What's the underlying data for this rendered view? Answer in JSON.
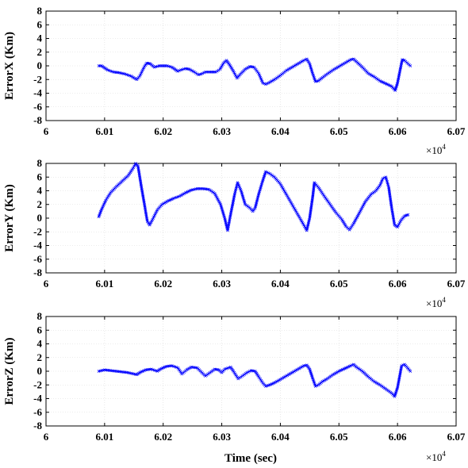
{
  "chart_data": [
    {
      "type": "scatter",
      "title": "",
      "xlabel": "",
      "ylabel": "ErrorX (Km)",
      "xlim": [
        60000,
        60700
      ],
      "ylim": [
        -8,
        8
      ],
      "xticks": [
        60000,
        60100,
        60200,
        60300,
        60400,
        60500,
        60600,
        60700
      ],
      "xtick_labels": [
        "6",
        "6.01",
        "6.02",
        "6.03",
        "6.04",
        "6.05",
        "6.06",
        "6.07"
      ],
      "yticks": [
        8,
        6,
        4,
        2,
        0,
        -2,
        -4,
        -6,
        -8
      ],
      "ytick_labels": [
        "8",
        "6",
        "4",
        "2",
        "0",
        "-2",
        "-4",
        "-6",
        "-8"
      ],
      "x_multiplier_base": "×10",
      "x_multiplier_exp": "4",
      "grid": true,
      "series": [
        {
          "color": "#0000ff",
          "marker": "x",
          "points": [
            [
              60090,
              0
            ],
            [
              60095,
              0
            ],
            [
              60100,
              -0.3
            ],
            [
              60105,
              -0.6
            ],
            [
              60115,
              -0.9
            ],
            [
              60125,
              -1.0
            ],
            [
              60135,
              -1.2
            ],
            [
              60145,
              -1.5
            ],
            [
              60155,
              -2.0
            ],
            [
              60160,
              -1.5
            ],
            [
              60168,
              -0.1
            ],
            [
              60172,
              0.4
            ],
            [
              60178,
              0.3
            ],
            [
              60185,
              -0.2
            ],
            [
              60193,
              0
            ],
            [
              60200,
              0
            ],
            [
              60207,
              0
            ],
            [
              60215,
              -0.2
            ],
            [
              60220,
              -0.5
            ],
            [
              60225,
              -0.8
            ],
            [
              60230,
              -0.6
            ],
            [
              60238,
              -0.4
            ],
            [
              60245,
              -0.5
            ],
            [
              60253,
              -0.9
            ],
            [
              60260,
              -1.3
            ],
            [
              60265,
              -1.2
            ],
            [
              60272,
              -0.9
            ],
            [
              60280,
              -0.9
            ],
            [
              60290,
              -0.9
            ],
            [
              60297,
              -0.5
            ],
            [
              60303,
              0.4
            ],
            [
              60308,
              0.8
            ],
            [
              60313,
              0.2
            ],
            [
              60320,
              -0.8
            ],
            [
              60326,
              -1.8
            ],
            [
              60332,
              -1.2
            ],
            [
              60340,
              -0.5
            ],
            [
              60348,
              -0.1
            ],
            [
              60355,
              -0.2
            ],
            [
              60363,
              -1.1
            ],
            [
              60370,
              -2.5
            ],
            [
              60375,
              -2.7
            ],
            [
              60382,
              -2.4
            ],
            [
              60390,
              -2.0
            ],
            [
              60400,
              -1.4
            ],
            [
              60410,
              -0.7
            ],
            [
              60420,
              -0.2
            ],
            [
              60430,
              0.3
            ],
            [
              60440,
              0.8
            ],
            [
              60445,
              1.0
            ],
            [
              60450,
              0.3
            ],
            [
              60455,
              -1.1
            ],
            [
              60460,
              -2.3
            ],
            [
              60465,
              -2.2
            ],
            [
              60472,
              -1.7
            ],
            [
              60480,
              -1.2
            ],
            [
              60490,
              -0.6
            ],
            [
              60500,
              -0.1
            ],
            [
              60510,
              0.4
            ],
            [
              60520,
              0.9
            ],
            [
              60525,
              1.0
            ],
            [
              60530,
              0.6
            ],
            [
              60540,
              -0.2
            ],
            [
              60550,
              -1.1
            ],
            [
              60560,
              -1.6
            ],
            [
              60570,
              -2.2
            ],
            [
              60580,
              -2.6
            ],
            [
              60590,
              -3.0
            ],
            [
              60596,
              -3.6
            ],
            [
              60600,
              -2.5
            ],
            [
              60608,
              0.9
            ],
            [
              60612,
              0.8
            ],
            [
              60618,
              0.3
            ],
            [
              60622,
              0
            ]
          ]
        }
      ]
    },
    {
      "type": "scatter",
      "title": "",
      "xlabel": "",
      "ylabel": "ErrorY (Km)",
      "xlim": [
        60000,
        60700
      ],
      "ylim": [
        -8,
        8
      ],
      "xticks": [
        60000,
        60100,
        60200,
        60300,
        60400,
        60500,
        60600,
        60700
      ],
      "xtick_labels": [
        "6",
        "6.01",
        "6.02",
        "6.03",
        "6.04",
        "6.05",
        "6.06",
        "6.07"
      ],
      "yticks": [
        8,
        6,
        4,
        2,
        0,
        -2,
        -4,
        -6,
        -8
      ],
      "ytick_labels": [
        "8",
        "6",
        "4",
        "2",
        "0",
        "-2",
        "-4",
        "-6",
        "-8"
      ],
      "x_multiplier_base": "×10",
      "x_multiplier_exp": "4",
      "grid": true,
      "series": [
        {
          "color": "#0000ff",
          "marker": "x",
          "points": [
            [
              60090,
              0.2
            ],
            [
              60095,
              1.3
            ],
            [
              60102,
              2.6
            ],
            [
              60110,
              3.7
            ],
            [
              60120,
              4.6
            ],
            [
              60130,
              5.4
            ],
            [
              60140,
              6.2
            ],
            [
              60148,
              7.2
            ],
            [
              60153,
              8.0
            ],
            [
              60157,
              7.6
            ],
            [
              60162,
              5.0
            ],
            [
              60168,
              2.0
            ],
            [
              60173,
              -0.5
            ],
            [
              60177,
              -1.0
            ],
            [
              60183,
              0
            ],
            [
              60190,
              1.2
            ],
            [
              60198,
              2.0
            ],
            [
              60208,
              2.5
            ],
            [
              60218,
              2.9
            ],
            [
              60228,
              3.2
            ],
            [
              60238,
              3.7
            ],
            [
              60248,
              4.1
            ],
            [
              60258,
              4.3
            ],
            [
              60268,
              4.3
            ],
            [
              60278,
              4.2
            ],
            [
              60288,
              3.6
            ],
            [
              60298,
              2.0
            ],
            [
              60305,
              0
            ],
            [
              60310,
              -1.8
            ],
            [
              60315,
              0.5
            ],
            [
              60322,
              3.5
            ],
            [
              60327,
              5.2
            ],
            [
              60333,
              4.0
            ],
            [
              60340,
              2.0
            ],
            [
              60348,
              1.5
            ],
            [
              60353,
              1.0
            ],
            [
              60357,
              1.5
            ],
            [
              60363,
              3.5
            ],
            [
              60370,
              5.5
            ],
            [
              60375,
              6.8
            ],
            [
              60382,
              6.5
            ],
            [
              60390,
              6.0
            ],
            [
              60400,
              5.0
            ],
            [
              60410,
              3.5
            ],
            [
              60420,
              2.0
            ],
            [
              60430,
              0.5
            ],
            [
              60440,
              -1.0
            ],
            [
              60445,
              -1.8
            ],
            [
              60450,
              0
            ],
            [
              60455,
              3.0
            ],
            [
              60458,
              5.2
            ],
            [
              60465,
              4.5
            ],
            [
              60475,
              3.2
            ],
            [
              60485,
              2.0
            ],
            [
              60495,
              0.8
            ],
            [
              60505,
              -0.2
            ],
            [
              60512,
              -1.2
            ],
            [
              60518,
              -1.7
            ],
            [
              60525,
              -0.8
            ],
            [
              60535,
              0.8
            ],
            [
              60545,
              2.4
            ],
            [
              60555,
              3.5
            ],
            [
              60563,
              4.0
            ],
            [
              60570,
              4.8
            ],
            [
              60575,
              5.8
            ],
            [
              60580,
              6.0
            ],
            [
              60585,
              4.5
            ],
            [
              60590,
              1.5
            ],
            [
              60595,
              -1.0
            ],
            [
              60600,
              -1.3
            ],
            [
              60606,
              -0.3
            ],
            [
              60612,
              0.3
            ],
            [
              60618,
              0.5
            ]
          ]
        }
      ]
    },
    {
      "type": "scatter",
      "title": "",
      "xlabel": "Time (sec)",
      "ylabel": "ErrorZ (Km)",
      "xlim": [
        60000,
        60700
      ],
      "ylim": [
        -8,
        8
      ],
      "xticks": [
        60000,
        60100,
        60200,
        60300,
        60400,
        60500,
        60600,
        60700
      ],
      "xtick_labels": [
        "6",
        "6.01",
        "6.02",
        "6.03",
        "6.04",
        "6.05",
        "6.06",
        "6.07"
      ],
      "yticks": [
        8,
        6,
        4,
        2,
        0,
        -2,
        -4,
        -6,
        -8
      ],
      "ytick_labels": [
        "8",
        "6",
        "4",
        "2",
        "0",
        "-2",
        "-4",
        "-6",
        "-8"
      ],
      "x_multiplier_base": "×10",
      "x_multiplier_exp": "4",
      "grid": true,
      "series": [
        {
          "color": "#0000ff",
          "marker": "x",
          "points": [
            [
              60090,
              0
            ],
            [
              60095,
              0.1
            ],
            [
              60100,
              0.2
            ],
            [
              60110,
              0.1
            ],
            [
              60120,
              0
            ],
            [
              60130,
              -0.1
            ],
            [
              60140,
              -0.2
            ],
            [
              60150,
              -0.4
            ],
            [
              60155,
              -0.5
            ],
            [
              60160,
              -0.2
            ],
            [
              60170,
              0.2
            ],
            [
              60180,
              0.3
            ],
            [
              60190,
              0
            ],
            [
              60195,
              0.3
            ],
            [
              60205,
              0.7
            ],
            [
              60215,
              0.8
            ],
            [
              60225,
              0.5
            ],
            [
              60232,
              -0.4
            ],
            [
              60240,
              0.2
            ],
            [
              60248,
              0.6
            ],
            [
              60258,
              0.5
            ],
            [
              60265,
              -0.1
            ],
            [
              60272,
              -0.7
            ],
            [
              60280,
              -0.2
            ],
            [
              60288,
              0.3
            ],
            [
              60295,
              0.2
            ],
            [
              60300,
              -0.2
            ],
            [
              60305,
              0.3
            ],
            [
              60315,
              0.6
            ],
            [
              60320,
              0
            ],
            [
              60328,
              -1.1
            ],
            [
              60335,
              -0.7
            ],
            [
              60343,
              -0.2
            ],
            [
              60350,
              0.1
            ],
            [
              60357,
              0
            ],
            [
              60363,
              -0.8
            ],
            [
              60370,
              -1.7
            ],
            [
              60375,
              -2.2
            ],
            [
              60382,
              -2.0
            ],
            [
              60392,
              -1.6
            ],
            [
              60402,
              -1.1
            ],
            [
              60412,
              -0.6
            ],
            [
              60422,
              -0.1
            ],
            [
              60432,
              0.4
            ],
            [
              60440,
              0.8
            ],
            [
              60445,
              0.9
            ],
            [
              60450,
              0.3
            ],
            [
              60455,
              -1.0
            ],
            [
              60460,
              -2.2
            ],
            [
              60465,
              -2.0
            ],
            [
              60472,
              -1.5
            ],
            [
              60480,
              -1.1
            ],
            [
              60490,
              -0.5
            ],
            [
              60500,
              0
            ],
            [
              60510,
              0.4
            ],
            [
              60520,
              0.8
            ],
            [
              60525,
              1.0
            ],
            [
              60530,
              0.6
            ],
            [
              60540,
              0
            ],
            [
              60550,
              -0.8
            ],
            [
              60560,
              -1.5
            ],
            [
              60570,
              -2.0
            ],
            [
              60580,
              -2.6
            ],
            [
              60590,
              -3.2
            ],
            [
              60595,
              -3.7
            ],
            [
              60600,
              -2.4
            ],
            [
              60607,
              0.8
            ],
            [
              60612,
              1.0
            ],
            [
              60617,
              0.5
            ],
            [
              60622,
              0
            ]
          ]
        }
      ]
    }
  ]
}
